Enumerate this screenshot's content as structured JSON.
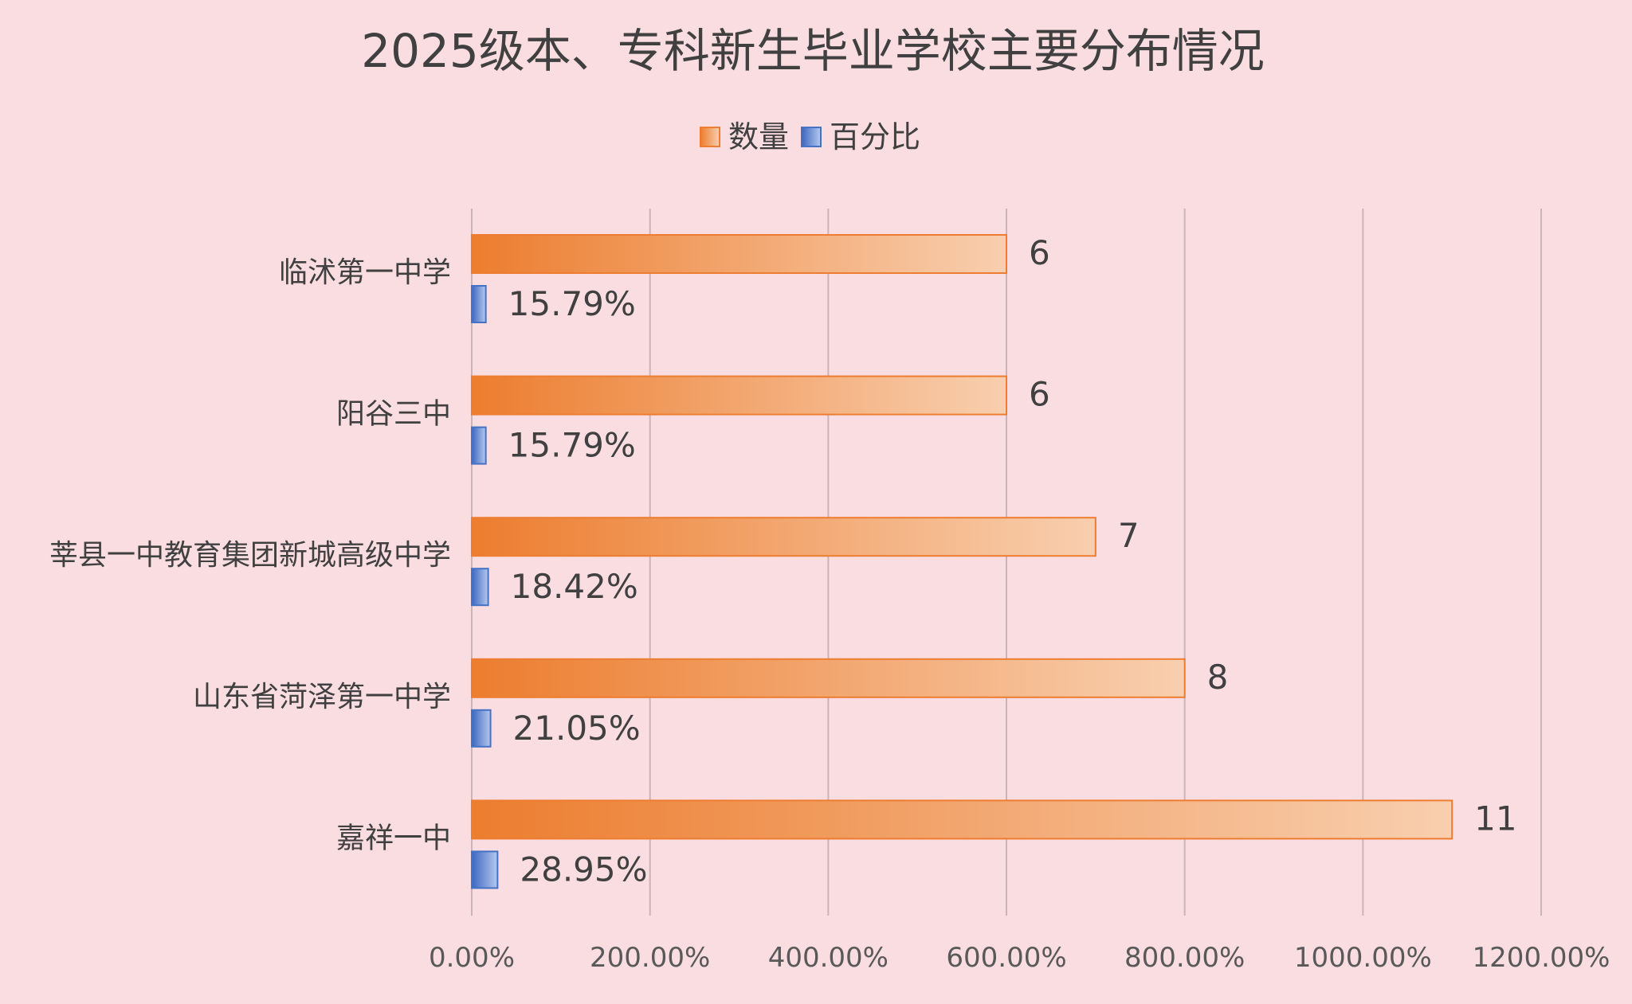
{
  "chart_data": {
    "type": "bar",
    "orientation": "horizontal",
    "title": "2025级本、专科新生毕业学校主要分布情况",
    "categories": [
      "临沭第一中学",
      "阳谷三中",
      "莘县一中教育集团新城高级中学",
      "山东省菏泽第一中学",
      "嘉祥一中"
    ],
    "series": [
      {
        "name": "数量",
        "values": [
          6,
          6,
          7,
          8,
          11
        ],
        "labels": [
          "6",
          "6",
          "7",
          "8",
          "11"
        ],
        "color": "#ed7d31"
      },
      {
        "name": "百分比",
        "values": [
          0.1579,
          0.1579,
          0.1842,
          0.2105,
          0.2895
        ],
        "labels": [
          "15.79%",
          "15.79%",
          "18.42%",
          "21.05%",
          "28.95%"
        ],
        "color": "#4472c4"
      }
    ],
    "x_axis": {
      "ticks": [
        "0.00%",
        "200.00%",
        "400.00%",
        "600.00%",
        "800.00%",
        "1000.00%",
        "1200.00%"
      ],
      "range": [
        0,
        12
      ]
    },
    "grid": "vertical",
    "legend": "top",
    "background": "#fadde1"
  }
}
